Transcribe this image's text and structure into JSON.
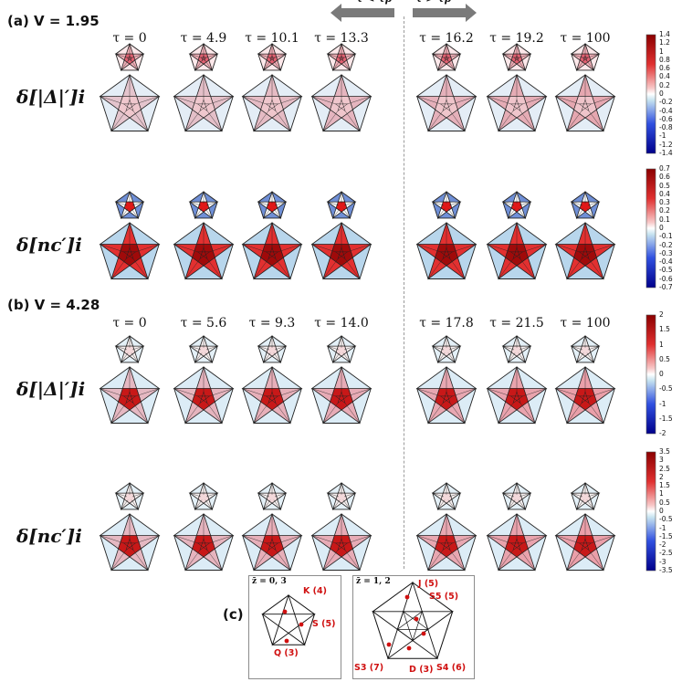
{
  "figure": {
    "panels": [
      {
        "label": "(a) V = 1.95",
        "taus": [
          "τ = 0",
          "τ = 4.9",
          "τ = 10.1",
          "τ = 13.3",
          "τ = 16.2",
          "τ = 19.2",
          "τ = 100"
        ],
        "rows": [
          {
            "label": "δ[|Δ|′]i",
            "colorbar": {
              "ticks": [
                "1.4",
                "1.2",
                "1",
                "0.8",
                "0.6",
                "0.4",
                "0.2",
                "0",
                "-0.2",
                "-0.4",
                "-0.6",
                "-0.8",
                "-1",
                "-1.2",
                "-1.4"
              ]
            }
          },
          {
            "label": "δ[nc′]i",
            "colorbar": {
              "ticks": [
                "0.7",
                "0.6",
                "0.5",
                "0.4",
                "0.3",
                "0.2",
                "0.1",
                "0",
                "-0.1",
                "-0.2",
                "-0.3",
                "-0.4",
                "-0.5",
                "-0.6",
                "-0.7"
              ]
            }
          }
        ]
      },
      {
        "label": "(b) V = 4.28",
        "taus": [
          "τ = 0",
          "τ = 5.6",
          "τ = 9.3",
          "τ = 14.0",
          "τ = 17.8",
          "τ = 21.5",
          "τ = 100"
        ],
        "rows": [
          {
            "label": "δ[|Δ|′]i",
            "colorbar": {
              "ticks": [
                "2",
                "1.5",
                "1",
                "0.5",
                "0",
                "-0.5",
                "-1",
                "-1.5",
                "-2"
              ]
            }
          },
          {
            "label": "δ[nc′]i",
            "colorbar": {
              "ticks": [
                "3.5",
                "3",
                "2.5",
                "2",
                "1.5",
                "1",
                "0.5",
                "0",
                "-0.5",
                "-1",
                "-1.5",
                "-2",
                "-2.5",
                "-3",
                "-3.5"
              ]
            }
          }
        ]
      }
    ],
    "arrows": {
      "left": "τ < τp",
      "right": "τ > τp"
    },
    "panel_c": {
      "label": "(c)",
      "boxes": [
        {
          "title": "z̄ = 0, 3",
          "sites": [
            "K (4)",
            "S (5)",
            "Q (3)"
          ]
        },
        {
          "title": "z̄ = 1, 2",
          "sites": [
            "J (5)",
            "S5 (5)",
            "S3 (7)",
            "D (3)",
            "S4 (6)"
          ]
        }
      ]
    },
    "colors": {
      "positive": "#d42020",
      "negative": "#2040c0",
      "neutral": "#ffffff"
    }
  }
}
